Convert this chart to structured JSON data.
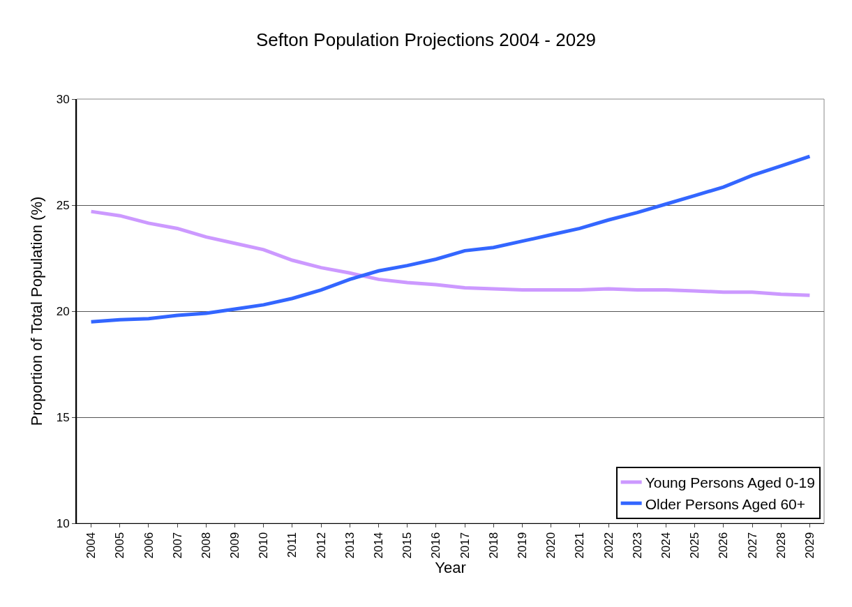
{
  "chart_data": {
    "type": "line",
    "title": "Sefton Population Projections 2004 - 2029",
    "xlabel": "Year",
    "ylabel": "Proportion of Total Population (%)",
    "categories": [
      "2004",
      "2005",
      "2006",
      "2007",
      "2008",
      "2009",
      "2010",
      "2011",
      "2012",
      "2013",
      "2014",
      "2015",
      "2016",
      "2017",
      "2018",
      "2019",
      "2020",
      "2021",
      "2022",
      "2023",
      "2024",
      "2025",
      "2026",
      "2027",
      "2028",
      "2029"
    ],
    "series": [
      {
        "name": "Young Persons Aged 0-19",
        "color": "#cc99ff",
        "values": [
          24.7,
          24.5,
          24.15,
          23.9,
          23.5,
          23.2,
          22.9,
          22.4,
          22.05,
          21.8,
          21.5,
          21.35,
          21.25,
          21.1,
          21.05,
          21.0,
          21.0,
          21.0,
          21.05,
          21.0,
          21.0,
          20.95,
          20.9,
          20.9,
          20.8,
          20.75
        ]
      },
      {
        "name": "Older Persons Aged 60+",
        "color": "#3366ff",
        "values": [
          19.5,
          19.6,
          19.65,
          19.8,
          19.9,
          20.1,
          20.3,
          20.6,
          21.0,
          21.5,
          21.9,
          22.15,
          22.45,
          22.85,
          23.0,
          23.3,
          23.6,
          23.9,
          24.3,
          24.65,
          25.05,
          25.45,
          25.85,
          26.4,
          26.85,
          27.3
        ]
      }
    ],
    "ylim": [
      10,
      30
    ],
    "yticks": [
      10,
      15,
      20,
      25,
      30
    ],
    "grid": "y",
    "legend": "bottom right",
    "marker": "none",
    "line_style": "solid"
  }
}
